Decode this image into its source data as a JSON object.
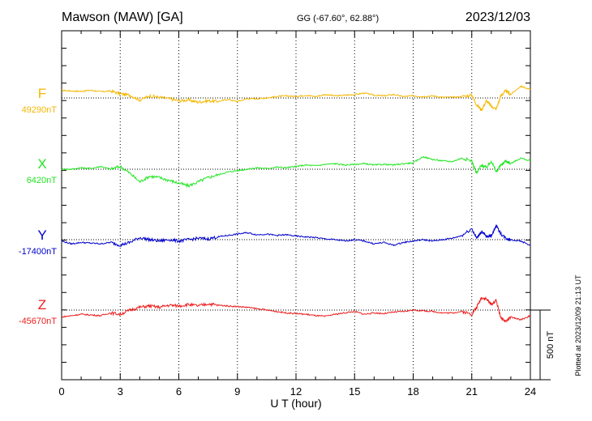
{
  "header": {
    "station": "Mawson (MAW)  [GA]",
    "coords": "GG (-67.60°,  62.88°)",
    "date": "2023/12/03"
  },
  "footer": {
    "plotted": "Plotted at 2023/12/09 21:13 UT"
  },
  "chart_data": {
    "type": "line",
    "title": "Mawson (MAW)  [GA]",
    "xlabel": "U T (hour)",
    "ylabel": "",
    "xlim": [
      0,
      24
    ],
    "xticks": [
      "0",
      "3",
      "6",
      "9",
      "12",
      "15",
      "18",
      "21",
      "24"
    ],
    "grid": "dotted vertical lines every 3 hours",
    "scale_bar": {
      "label": "500 nT",
      "value_nT": 500
    },
    "series": [
      {
        "name": "F",
        "baseline_label": "49290nT",
        "baseline_nT": 49290,
        "color": "#f5b700",
        "x": [
          0,
          0.5,
          1,
          1.5,
          2,
          2.5,
          3,
          3.5,
          4,
          4.5,
          5,
          5.5,
          6,
          6.5,
          7,
          7.5,
          8,
          8.5,
          9,
          9.5,
          10,
          10.5,
          11,
          11.5,
          12,
          12.5,
          13,
          13.5,
          14,
          14.5,
          15,
          15.5,
          16,
          16.5,
          17,
          17.5,
          18,
          18.5,
          19,
          19.5,
          20,
          20.5,
          21,
          21.25,
          21.5,
          21.75,
          22,
          22.25,
          22.5,
          22.75,
          23,
          23.5,
          24
        ],
        "values": [
          55,
          50,
          48,
          55,
          45,
          50,
          30,
          20,
          -15,
          15,
          5,
          -5,
          -20,
          -15,
          -30,
          -20,
          -25,
          -10,
          -25,
          -5,
          -5,
          0,
          10,
          15,
          10,
          20,
          10,
          25,
          15,
          20,
          25,
          35,
          20,
          15,
          25,
          10,
          15,
          10,
          15,
          5,
          5,
          10,
          20,
          -50,
          -85,
          -20,
          -60,
          -80,
          20,
          50,
          25,
          85,
          60
        ]
      },
      {
        "name": "X",
        "baseline_label": "6420nT",
        "baseline_nT": 6420,
        "color": "#22e622",
        "x": [
          0,
          0.5,
          1,
          1.5,
          2,
          2.5,
          3,
          3.5,
          4,
          4.5,
          5,
          5.5,
          6,
          6.5,
          7,
          7.5,
          8,
          8.5,
          9,
          9.5,
          10,
          10.5,
          11,
          11.5,
          12,
          12.5,
          13,
          13.5,
          14,
          14.5,
          15,
          15.5,
          16,
          16.5,
          17,
          17.5,
          18,
          18.5,
          19,
          19.5,
          20,
          20.5,
          21,
          21.25,
          21.5,
          21.75,
          22,
          22.25,
          22.5,
          22.75,
          23,
          23.5,
          24
        ],
        "values": [
          0,
          0,
          10,
          5,
          20,
          0,
          20,
          -30,
          -90,
          -50,
          -60,
          -80,
          -100,
          -120,
          -90,
          -60,
          -40,
          -20,
          -10,
          0,
          10,
          5,
          15,
          10,
          20,
          30,
          25,
          35,
          40,
          30,
          35,
          40,
          30,
          35,
          30,
          40,
          45,
          90,
          70,
          60,
          55,
          80,
          60,
          -30,
          30,
          10,
          60,
          -20,
          30,
          60,
          40,
          80,
          60
        ]
      },
      {
        "name": "Y",
        "baseline_label": "-17400nT",
        "baseline_nT": -17400,
        "color": "#0000cc",
        "x": [
          0,
          0.5,
          1,
          1.5,
          2,
          2.5,
          3,
          3.5,
          4,
          4.5,
          5,
          5.5,
          6,
          6.5,
          7,
          7.5,
          8,
          8.5,
          9,
          9.5,
          10,
          10.5,
          11,
          11.5,
          12,
          12.5,
          13,
          13.5,
          14,
          14.5,
          15,
          15.5,
          16,
          16.5,
          17,
          17.5,
          18,
          18.5,
          19,
          19.5,
          20,
          20.5,
          21,
          21.25,
          21.5,
          21.75,
          22,
          22.25,
          22.5,
          22.75,
          23,
          23.5,
          24
        ],
        "values": [
          -10,
          -30,
          -20,
          -25,
          -30,
          -20,
          -40,
          -20,
          15,
          0,
          -10,
          0,
          -10,
          0,
          10,
          5,
          20,
          30,
          40,
          50,
          35,
          40,
          30,
          35,
          25,
          20,
          15,
          5,
          0,
          -10,
          0,
          -10,
          -30,
          -20,
          -40,
          -20,
          -10,
          0,
          -10,
          0,
          10,
          30,
          80,
          10,
          60,
          20,
          30,
          100,
          40,
          10,
          0,
          -10,
          -40
        ]
      },
      {
        "name": "Z",
        "baseline_label": "-45670nT",
        "baseline_nT": -45670,
        "color": "#ee1c1c",
        "x": [
          0,
          0.5,
          1,
          1.5,
          2,
          2.5,
          3,
          3.5,
          4,
          4.5,
          5,
          5.5,
          6,
          6.5,
          7,
          7.5,
          8,
          8.5,
          9,
          9.5,
          10,
          10.5,
          11,
          11.5,
          12,
          12.5,
          13,
          13.5,
          14,
          14.5,
          15,
          15.5,
          16,
          16.5,
          17,
          17.5,
          18,
          18.5,
          19,
          19.5,
          20,
          20.5,
          21,
          21.25,
          21.5,
          21.75,
          22,
          22.25,
          22.5,
          22.75,
          23,
          23.5,
          24
        ],
        "values": [
          -50,
          -40,
          -30,
          -35,
          -40,
          -20,
          -30,
          0,
          20,
          30,
          20,
          35,
          30,
          40,
          30,
          45,
          35,
          30,
          25,
          20,
          10,
          0,
          -10,
          -20,
          -25,
          -30,
          -40,
          -45,
          -30,
          -20,
          -10,
          -30,
          -20,
          -25,
          -15,
          -10,
          0,
          -5,
          -10,
          -20,
          -20,
          -10,
          -30,
          20,
          90,
          80,
          40,
          70,
          -60,
          -80,
          -50,
          -70,
          -40
        ]
      }
    ]
  }
}
